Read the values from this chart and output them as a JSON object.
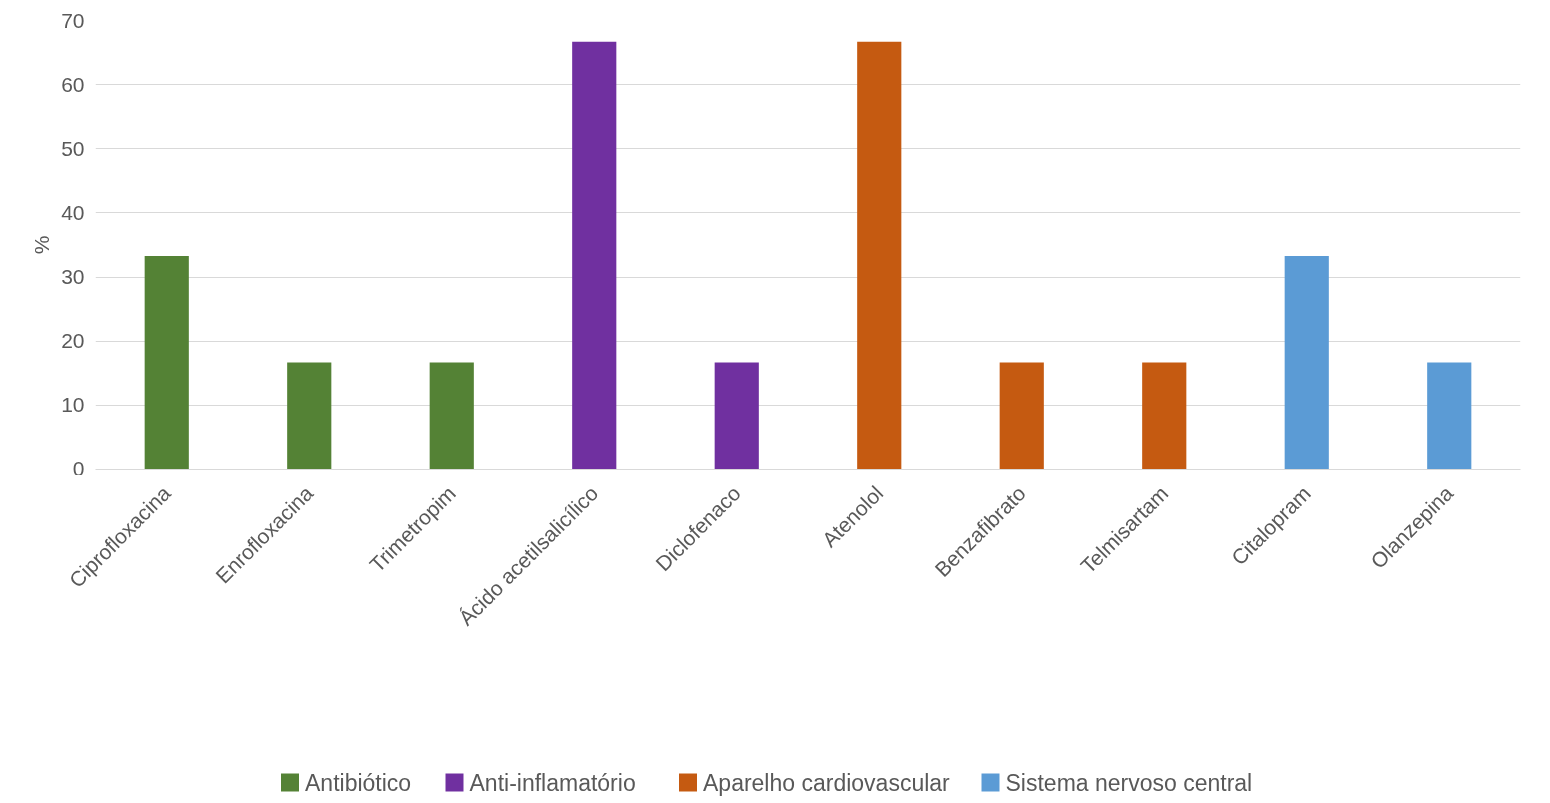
{
  "chart_data": {
    "type": "bar",
    "ylabel": "%",
    "categories": [
      "Ciprofloxacina",
      "Enrofloxacina",
      "Trimetropim",
      "Ácido acetilsalicílico",
      "Diclofenaco",
      "Atenolol",
      "Benzafibrato",
      "Telmisartam",
      "Citalopram",
      "Olanzepina"
    ],
    "series": [
      {
        "name": "Antibiótico",
        "color": "#548235",
        "values": [
          33.3,
          16.7,
          16.7,
          null,
          null,
          null,
          null,
          null,
          null,
          null
        ]
      },
      {
        "name": "Anti-inflamatório",
        "color": "#7030a0",
        "values": [
          null,
          null,
          null,
          66.7,
          16.7,
          null,
          null,
          null,
          null,
          null
        ]
      },
      {
        "name": "Aparelho cardiovascular",
        "color": "#c55a11",
        "values": [
          null,
          null,
          null,
          null,
          null,
          66.7,
          16.7,
          16.7,
          null,
          null
        ]
      },
      {
        "name": "Sistema nervoso central",
        "color": "#5b9bd5",
        "values": [
          null,
          null,
          null,
          null,
          null,
          null,
          null,
          null,
          33.3,
          16.7
        ]
      }
    ],
    "ylim": [
      0,
      70
    ],
    "yticks": [
      0,
      10,
      20,
      30,
      40,
      50,
      60,
      70
    ],
    "grid": "y",
    "legend": "bottom"
  }
}
